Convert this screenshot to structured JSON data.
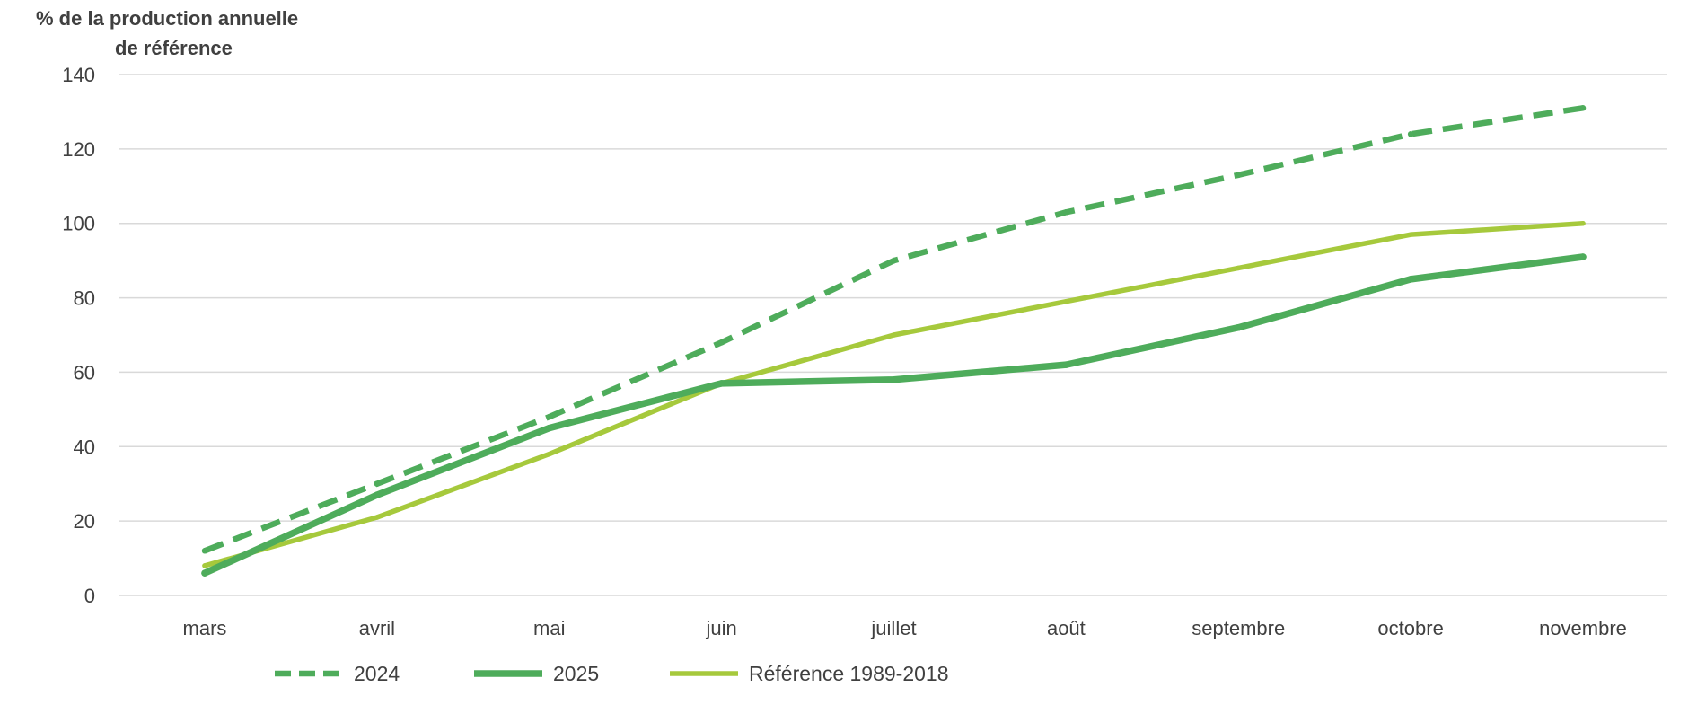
{
  "chart_data": {
    "type": "line",
    "title": "",
    "ylabel_lines": [
      "% de  la production  annuelle",
      "de référence"
    ],
    "xlabel": "",
    "categories": [
      "mars",
      "avril",
      "mai",
      "juin",
      "juillet",
      "août",
      "septembre",
      "octobre",
      "novembre"
    ],
    "ylim": [
      0,
      140
    ],
    "yticks": [
      0,
      20,
      40,
      60,
      80,
      100,
      120,
      140
    ],
    "grid": true,
    "legend_position": "bottom",
    "series": [
      {
        "name": "2024",
        "values": [
          12,
          30,
          48,
          68,
          90,
          103,
          113,
          124,
          131
        ],
        "color": "#4eac5b",
        "style": "dashed"
      },
      {
        "name": "2025",
        "values": [
          6,
          27,
          45,
          57,
          58,
          62,
          72,
          85,
          91
        ],
        "color": "#4eac5b",
        "style": "solid-thick"
      },
      {
        "name": "Référence 1989-2018",
        "values": [
          8,
          21,
          38,
          57,
          70,
          79,
          88,
          97,
          100
        ],
        "color": "#a6c93c",
        "style": "solid"
      }
    ]
  }
}
